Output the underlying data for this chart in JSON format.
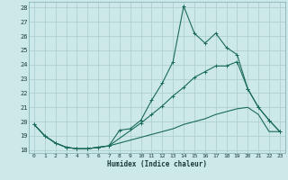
{
  "title": "",
  "xlabel": "Humidex (Indice chaleur)",
  "ylabel": "",
  "bg_color": "#cce8e8",
  "line_color": "#1a6b5a",
  "grid_color": "#aacccc",
  "xlim": [
    -0.5,
    23.5
  ],
  "ylim": [
    17.8,
    28.4
  ],
  "yticks": [
    18,
    19,
    20,
    21,
    22,
    23,
    24,
    25,
    26,
    27,
    28
  ],
  "xticks": [
    0,
    1,
    2,
    3,
    4,
    5,
    6,
    7,
    8,
    9,
    10,
    11,
    12,
    13,
    14,
    15,
    16,
    17,
    18,
    19,
    20,
    21,
    22,
    23
  ],
  "line1_x": [
    0,
    1,
    2,
    3,
    4,
    5,
    6,
    7,
    8,
    9,
    10,
    11,
    12,
    13,
    14,
    15,
    16,
    17,
    18,
    19,
    20,
    21,
    22,
    23
  ],
  "line1_y": [
    19.8,
    19.0,
    18.5,
    18.2,
    18.1,
    18.1,
    18.2,
    18.3,
    19.4,
    19.5,
    20.1,
    21.5,
    22.7,
    24.2,
    28.1,
    26.2,
    25.5,
    26.2,
    25.2,
    24.7,
    22.3,
    21.0,
    20.1,
    19.3
  ],
  "line2_x": [
    0,
    1,
    2,
    3,
    4,
    5,
    6,
    7,
    10,
    11,
    12,
    13,
    14,
    15,
    16,
    17,
    18,
    19,
    20,
    21,
    22,
    23
  ],
  "line2_y": [
    19.8,
    19.0,
    18.5,
    18.2,
    18.1,
    18.1,
    18.2,
    18.3,
    19.9,
    20.5,
    21.1,
    21.8,
    22.4,
    23.1,
    23.5,
    23.9,
    23.9,
    24.2,
    22.3,
    21.0,
    20.1,
    19.3
  ],
  "line3_x": [
    0,
    1,
    2,
    3,
    4,
    5,
    6,
    7,
    8,
    9,
    10,
    11,
    12,
    13,
    14,
    15,
    16,
    17,
    18,
    19,
    20,
    21,
    22,
    23
  ],
  "line3_y": [
    19.8,
    19.0,
    18.5,
    18.2,
    18.1,
    18.1,
    18.2,
    18.3,
    18.5,
    18.7,
    18.9,
    19.1,
    19.3,
    19.5,
    19.8,
    20.0,
    20.2,
    20.5,
    20.7,
    20.9,
    21.0,
    20.5,
    19.3,
    19.3
  ]
}
